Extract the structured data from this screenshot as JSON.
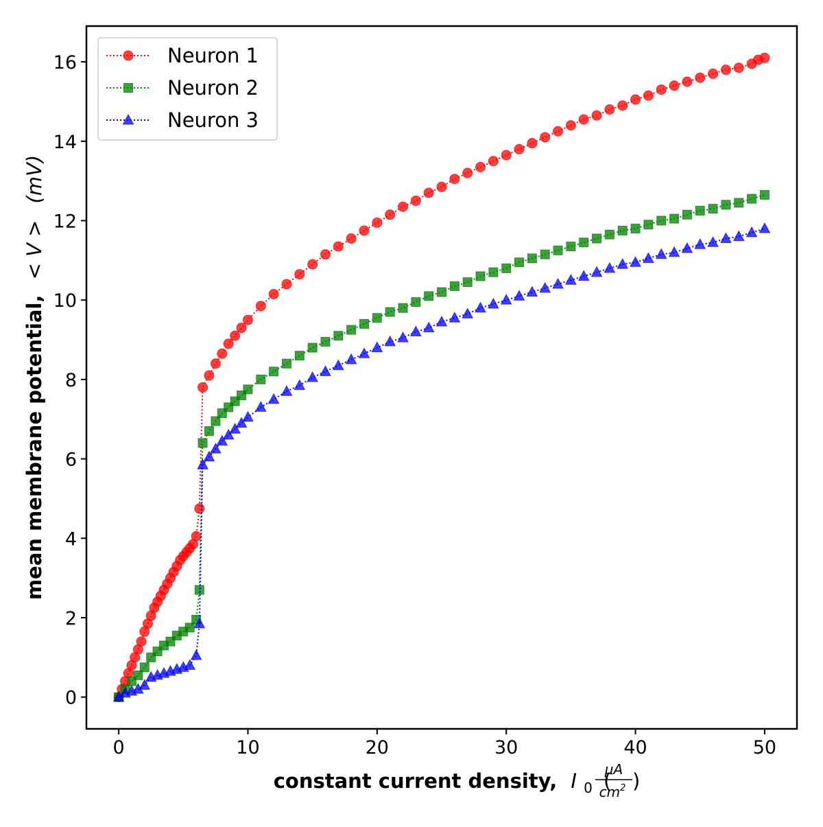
{
  "chart_data": {
    "type": "line",
    "xlabel": "constant current density,",
    "xlabel_symbol": "I",
    "xlabel_subscript": "0",
    "xlabel_unit_numerator": "μA",
    "xlabel_unit_denominator": "cm",
    "xlabel_unit_denominator_exponent": "2",
    "ylabel": "mean membrane potential,",
    "ylabel_symbol": "< V >",
    "ylabel_unit": "(mV)",
    "xlim": [
      -2.5,
      52.5
    ],
    "ylim": [
      -0.8,
      16.9
    ],
    "x_ticks": [
      0,
      10,
      20,
      30,
      40,
      50
    ],
    "x_tick_labels": [
      "0",
      "10",
      "20",
      "30",
      "40",
      "50"
    ],
    "y_ticks": [
      0,
      2,
      4,
      6,
      8,
      10,
      12,
      14,
      16
    ],
    "y_tick_labels": [
      "0",
      "2",
      "4",
      "6",
      "8",
      "10",
      "12",
      "14",
      "16"
    ],
    "grid": false,
    "legend_position": "top-left",
    "series": [
      {
        "name": "Neuron 1",
        "color": "#ff0000",
        "marker": "circle",
        "line_style": "dotted",
        "x": [
          0,
          0.25,
          0.5,
          0.75,
          1.0,
          1.25,
          1.5,
          1.75,
          2.0,
          2.25,
          2.5,
          2.75,
          3.0,
          3.25,
          3.5,
          3.75,
          4.0,
          4.25,
          4.5,
          4.75,
          5.0,
          5.25,
          5.5,
          5.75,
          6.0,
          6.25,
          6.5,
          7,
          7.5,
          8,
          8.5,
          9,
          9.5,
          10,
          11,
          12,
          13,
          14,
          15,
          16,
          17,
          18,
          19,
          20,
          21,
          22,
          23,
          24,
          25,
          26,
          27,
          28,
          29,
          30,
          31,
          32,
          33,
          34,
          35,
          36,
          37,
          38,
          39,
          40,
          41,
          42,
          43,
          44,
          45,
          46,
          47,
          48,
          49,
          49.5,
          50
        ],
        "y": [
          0,
          0.2,
          0.4,
          0.6,
          0.8,
          1.0,
          1.2,
          1.4,
          1.65,
          1.85,
          2.05,
          2.25,
          2.4,
          2.55,
          2.7,
          2.85,
          3.0,
          3.15,
          3.3,
          3.45,
          3.55,
          3.65,
          3.75,
          3.85,
          4.05,
          4.75,
          7.8,
          8.1,
          8.4,
          8.65,
          8.9,
          9.1,
          9.3,
          9.5,
          9.85,
          10.15,
          10.4,
          10.65,
          10.9,
          11.15,
          11.35,
          11.55,
          11.75,
          11.95,
          12.15,
          12.35,
          12.5,
          12.7,
          12.85,
          13.05,
          13.2,
          13.35,
          13.5,
          13.65,
          13.8,
          13.95,
          14.1,
          14.25,
          14.4,
          14.55,
          14.65,
          14.8,
          14.9,
          15.05,
          15.15,
          15.3,
          15.4,
          15.5,
          15.6,
          15.7,
          15.8,
          15.85,
          15.95,
          16.05,
          16.1
        ]
      },
      {
        "name": "Neuron 2",
        "color": "#008000",
        "marker": "square",
        "line_style": "dotted",
        "x": [
          0,
          0.5,
          1.0,
          1.5,
          2.0,
          2.5,
          3.0,
          3.5,
          4.0,
          4.5,
          5.0,
          5.5,
          6.0,
          6.25,
          6.5,
          7,
          7.5,
          8,
          8.5,
          9,
          9.5,
          10,
          11,
          12,
          13,
          14,
          15,
          16,
          17,
          18,
          19,
          20,
          21,
          22,
          23,
          24,
          25,
          26,
          27,
          28,
          29,
          30,
          31,
          32,
          33,
          34,
          35,
          36,
          37,
          38,
          39,
          40,
          41,
          42,
          43,
          44,
          45,
          46,
          47,
          48,
          49,
          50
        ],
        "y": [
          0,
          0.2,
          0.4,
          0.55,
          0.75,
          1.0,
          1.15,
          1.3,
          1.4,
          1.55,
          1.65,
          1.75,
          1.95,
          2.7,
          6.4,
          6.7,
          6.95,
          7.15,
          7.3,
          7.45,
          7.6,
          7.75,
          8.0,
          8.2,
          8.4,
          8.6,
          8.8,
          8.95,
          9.1,
          9.25,
          9.4,
          9.55,
          9.7,
          9.8,
          9.95,
          10.1,
          10.2,
          10.35,
          10.45,
          10.6,
          10.7,
          10.8,
          10.95,
          11.05,
          11.15,
          11.25,
          11.35,
          11.45,
          11.55,
          11.65,
          11.75,
          11.8,
          11.9,
          12.0,
          12.05,
          12.15,
          12.25,
          12.3,
          12.4,
          12.45,
          12.55,
          12.65
        ]
      },
      {
        "name": "Neuron 3",
        "color": "#0000ff",
        "marker": "triangle",
        "line_style": "dotted",
        "x": [
          0,
          0.5,
          1.0,
          1.5,
          2.0,
          2.5,
          3.0,
          3.5,
          4.0,
          4.5,
          5.0,
          5.5,
          6.0,
          6.25,
          6.5,
          7,
          7.5,
          8,
          8.5,
          9,
          9.5,
          10,
          11,
          12,
          13,
          14,
          15,
          16,
          17,
          18,
          19,
          20,
          21,
          22,
          23,
          24,
          25,
          26,
          27,
          28,
          29,
          30,
          31,
          32,
          33,
          34,
          35,
          36,
          37,
          38,
          39,
          40,
          41,
          42,
          43,
          44,
          45,
          46,
          47,
          48,
          49,
          50
        ],
        "y": [
          0,
          0.1,
          0.15,
          0.2,
          0.3,
          0.5,
          0.55,
          0.6,
          0.65,
          0.7,
          0.75,
          0.8,
          1.05,
          1.85,
          5.85,
          6.05,
          6.25,
          6.45,
          6.6,
          6.75,
          6.9,
          7.05,
          7.3,
          7.5,
          7.7,
          7.85,
          8.05,
          8.2,
          8.35,
          8.5,
          8.65,
          8.8,
          8.95,
          9.05,
          9.2,
          9.3,
          9.45,
          9.55,
          9.65,
          9.8,
          9.9,
          10.0,
          10.1,
          10.2,
          10.3,
          10.4,
          10.5,
          10.6,
          10.7,
          10.8,
          10.9,
          10.95,
          11.05,
          11.15,
          11.2,
          11.3,
          11.4,
          11.45,
          11.55,
          11.6,
          11.7,
          11.8
        ]
      }
    ]
  }
}
